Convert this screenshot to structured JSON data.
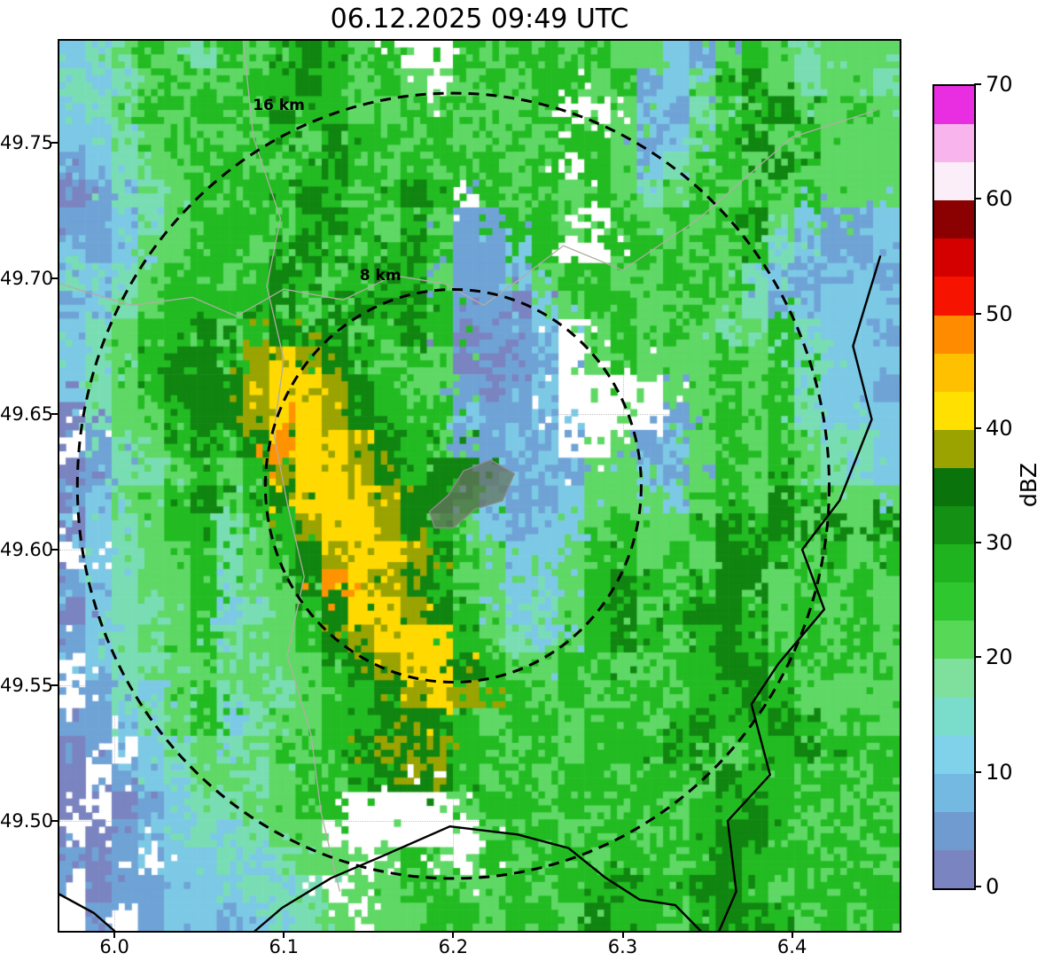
{
  "chart_data": {
    "type": "heatmap",
    "title": "06.12.2025 09:49 UTC",
    "colorbar": {
      "label": "dBZ",
      "min": 0,
      "max": 70,
      "ticks": [
        0,
        10,
        20,
        30,
        40,
        50,
        60,
        70
      ],
      "tick_labels": [
        "0",
        "10",
        "20",
        "30",
        "40",
        "50",
        "60",
        "70"
      ],
      "colors_bottom_to_top": [
        "#7a84c0",
        "#6f9bd1",
        "#74b9e1",
        "#7fd2e9",
        "#7adcca",
        "#7ee09c",
        "#57d957",
        "#2fc72f",
        "#1fb41f",
        "#149114",
        "#0b730b",
        "#9aa300",
        "#ffe000",
        "#ffc000",
        "#ff8c00",
        "#f61300",
        "#d40000",
        "#8b0000",
        "#fceef8",
        "#f8b4ec",
        "#e82ee0"
      ]
    },
    "axes": {
      "xlim": [
        5.9675,
        6.4635
      ],
      "ylim": [
        49.4595,
        49.7875
      ],
      "xticks": [
        6.0,
        6.1,
        6.2,
        6.3,
        6.4
      ],
      "xtick_labels": [
        "6.0",
        "6.1",
        "6.2",
        "6.3",
        "6.4"
      ],
      "yticks": [
        49.5,
        49.55,
        49.6,
        49.65,
        49.7,
        49.75
      ],
      "ytick_labels": [
        "49.50",
        "49.55",
        "49.60",
        "49.65",
        "49.70",
        "49.75"
      ],
      "grid": "dotted"
    },
    "range_rings": {
      "center": {
        "lon": 6.2,
        "lat": 49.6235
      },
      "rings_km": [
        8,
        16
      ],
      "labels": [
        {
          "text": "8 km",
          "lon": 6.157,
          "lat": 49.701
        },
        {
          "text": "16 km",
          "lon": 6.097,
          "lat": 49.7635
        }
      ]
    },
    "reflectivity_grid": {
      "description": "Radar reflectivity field approximated on a 32x32 grid; each character is one cell, '.' = no echo (white). Values in dBZ per levels_dbz.",
      "levels_dbz": {
        ".": null,
        "0": 2,
        "1": 8,
        "2": 12,
        "3": 16,
        "4": 21,
        "5": 27,
        "6": 33,
        "7": 38,
        "8": 42,
        "9": 47
      },
      "level_colors": {
        ".": null,
        "0": "#7a84c0",
        "1": "#6fa3d6",
        "2": "#7cc9e6",
        "3": "#79ddb4",
        "4": "#5fd865",
        "5": "#22bb22",
        "6": "#108510",
        "7": "#9aa300",
        "8": "#ffd900",
        "9": "#ff9300"
      },
      "rows_top_to_bottom": [
        "2345435456545..54554544214543444",
        "32345445565454.45455451245643443",
        "2345455465544545445..42134564454",
        "22345445546554544545541245645444",
        "1234455445654545545.542345464444",
        "013345455654565.5454543454545444",
        "11234555456545411554.54545642112",
        "2124455456545651125..55454532112",
        "32345545654565411245544545321221",
        "12345555645656511024554454312222",
        "2345564565645650112.454543453221",
        "2345665787654540011.454445453222",
        "2345666788765441012....445453221",
        "0344566788765552112....145453222",
        ".134565698876541121..41245454332",
        "01334545788765661121442145454332",
        "12445645688876652112444245465444",
        "02345534578876542122454456564646",
        ".2344534567887654224554546654545",
        "12344534469876544224565456645454",
        "02334523456887654234564566545454",
        "12344534456788854324565456545454",
        ".2334443445678865445544556654545",
        ".1324534345567875545455455654444",
        "11234523445566654554554565565454",
        "01.23434545676755454555654556555",
        "0.123443454567654545545546554545",
        "0.012334455....45545455455655454",
        ".012232344......4554554556654545",
        "101.2232344.454.5455455456555454",
        ".011222323.445544545565566545555",
        ".1.12212334.44554554655456654545"
      ]
    },
    "map_features": {
      "borders": [
        {
          "points": [
            [
              6.452,
              49.708
            ],
            [
              6.436,
              49.675
            ],
            [
              6.447,
              49.648
            ],
            [
              6.428,
              49.618
            ],
            [
              6.406,
              49.6
            ],
            [
              6.419,
              49.578
            ],
            [
              6.392,
              49.558
            ],
            [
              6.376,
              49.543
            ],
            [
              6.387,
              49.517
            ],
            [
              6.362,
              49.5
            ],
            [
              6.367,
              49.474
            ],
            [
              6.357,
              49.4595
            ]
          ]
        },
        {
          "points": [
            [
              6.083,
              49.4595
            ],
            [
              6.099,
              49.468
            ],
            [
              6.128,
              49.479
            ],
            [
              6.158,
              49.487
            ],
            [
              6.198,
              49.498
            ],
            [
              6.238,
              49.495
            ],
            [
              6.268,
              49.49
            ],
            [
              6.29,
              49.479
            ],
            [
              6.31,
              49.471
            ],
            [
              6.331,
              49.469
            ],
            [
              6.346,
              49.4595
            ]
          ]
        },
        {
          "points": [
            [
              5.9675,
              49.473
            ],
            [
              5.988,
              49.466
            ],
            [
              6.0,
              49.4595
            ]
          ]
        }
      ],
      "admin_lines": [
        {
          "points": [
            [
              5.9675,
              49.698
            ],
            [
              6.01,
              49.69
            ],
            [
              6.046,
              49.693
            ],
            [
              6.072,
              49.686
            ],
            [
              6.1,
              49.696
            ],
            [
              6.135,
              49.692
            ],
            [
              6.165,
              49.701
            ],
            [
              6.195,
              49.698
            ],
            [
              6.218,
              49.69
            ],
            [
              6.24,
              49.7
            ],
            [
              6.265,
              49.712
            ],
            [
              6.3,
              49.703
            ],
            [
              6.345,
              49.722
            ],
            [
              6.4,
              49.752
            ],
            [
              6.45,
              49.762
            ]
          ]
        },
        {
          "points": [
            [
              6.076,
              49.7875
            ],
            [
              6.082,
              49.752
            ],
            [
              6.098,
              49.722
            ],
            [
              6.09,
              49.697
            ],
            [
              6.1,
              49.67
            ],
            [
              6.094,
              49.643
            ],
            [
              6.102,
              49.617
            ],
            [
              6.112,
              49.59
            ],
            [
              6.102,
              49.561
            ],
            [
              6.116,
              49.532
            ],
            [
              6.122,
              49.503
            ],
            [
              6.133,
              49.474
            ]
          ]
        }
      ],
      "city_polygon": {
        "points": [
          [
            6.186,
            49.614
          ],
          [
            6.197,
            49.62
          ],
          [
            6.206,
            49.629
          ],
          [
            6.222,
            49.633
          ],
          [
            6.236,
            49.628
          ],
          [
            6.229,
            49.618
          ],
          [
            6.213,
            49.615
          ],
          [
            6.2,
            49.608
          ],
          [
            6.189,
            49.608
          ]
        ]
      }
    }
  }
}
